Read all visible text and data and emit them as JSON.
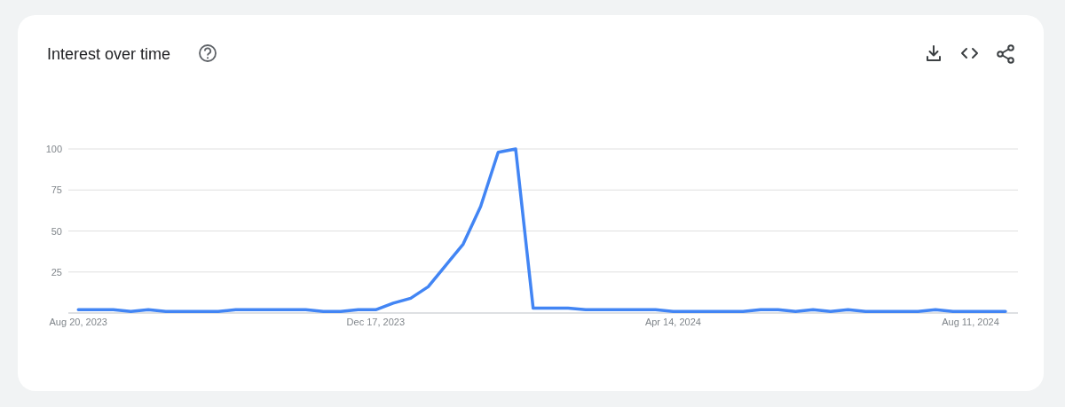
{
  "chart_data": {
    "type": "line",
    "title": "Interest over time",
    "x": [
      "2023-08-20",
      "2023-08-27",
      "2023-09-03",
      "2023-09-10",
      "2023-09-17",
      "2023-09-24",
      "2023-10-01",
      "2023-10-08",
      "2023-10-15",
      "2023-10-22",
      "2023-10-29",
      "2023-11-05",
      "2023-11-12",
      "2023-11-19",
      "2023-11-26",
      "2023-12-03",
      "2023-12-10",
      "2023-12-17",
      "2023-12-24",
      "2023-12-31",
      "2024-01-07",
      "2024-01-14",
      "2024-01-21",
      "2024-01-28",
      "2024-02-04",
      "2024-02-11",
      "2024-02-18",
      "2024-02-25",
      "2024-03-03",
      "2024-03-10",
      "2024-03-17",
      "2024-03-24",
      "2024-03-31",
      "2024-04-07",
      "2024-04-14",
      "2024-04-21",
      "2024-04-28",
      "2024-05-05",
      "2024-05-12",
      "2024-05-19",
      "2024-05-26",
      "2024-06-02",
      "2024-06-09",
      "2024-06-16",
      "2024-06-23",
      "2024-06-30",
      "2024-07-07",
      "2024-07-14",
      "2024-07-21",
      "2024-07-28",
      "2024-08-04",
      "2024-08-11",
      "2024-08-18",
      "2024-08-25"
    ],
    "series": [
      {
        "color": "#4285f4",
        "values": [
          2,
          2,
          2,
          1,
          2,
          1,
          1,
          1,
          1,
          2,
          2,
          2,
          2,
          2,
          1,
          1,
          2,
          2,
          6,
          9,
          16,
          29,
          42,
          65,
          98,
          100,
          3,
          3,
          3,
          2,
          2,
          2,
          2,
          2,
          1,
          1,
          1,
          1,
          1,
          2,
          2,
          1,
          2,
          1,
          2,
          1,
          1,
          1,
          1,
          2,
          1,
          1,
          1,
          1
        ]
      }
    ],
    "xlim": [
      "2023-08-16",
      "2024-08-30"
    ],
    "xticks": [
      {
        "value": "2023-08-20",
        "label": "Aug 20, 2023"
      },
      {
        "value": "2023-12-17",
        "label": "Dec 17, 2023"
      },
      {
        "value": "2024-04-14",
        "label": "Apr 14, 2024"
      },
      {
        "value": "2024-08-11",
        "label": "Aug 11, 2024"
      }
    ],
    "ylim": [
      0,
      100
    ],
    "yticks": [
      {
        "value": 0,
        "label": null
      },
      25,
      50,
      75,
      100
    ],
    "grid": "y"
  }
}
